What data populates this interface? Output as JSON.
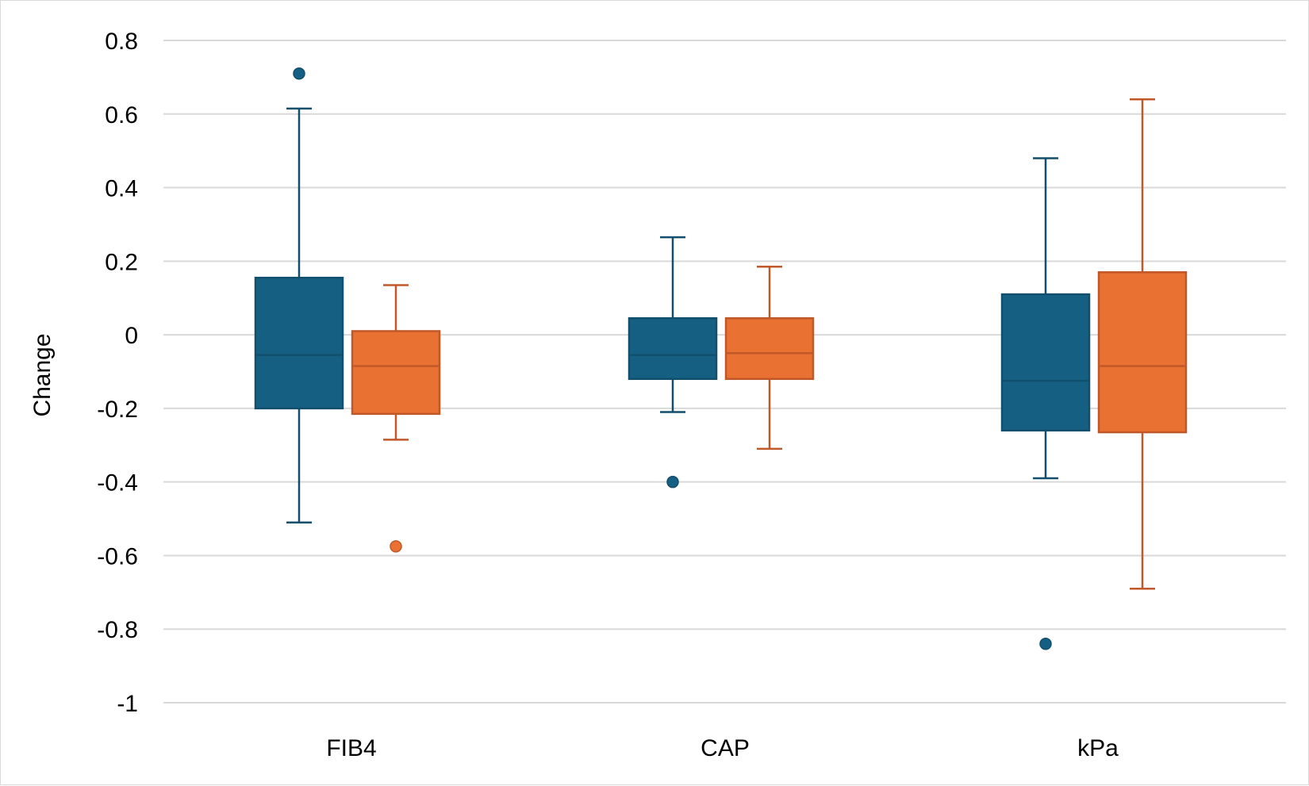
{
  "chart_data": {
    "type": "box",
    "title": "",
    "xlabel": "",
    "ylabel": "Change",
    "ylim": [
      -1,
      0.8
    ],
    "yticks": [
      0.8,
      0.6,
      0.4,
      0.2,
      0,
      -0.2,
      -0.4,
      -0.6,
      -0.8,
      -1
    ],
    "ytick_labels": [
      "0.8",
      "0.6",
      "0.4",
      "0.2",
      "0",
      "-0.2",
      "-0.4",
      "-0.6",
      "-0.8",
      "-1"
    ],
    "categories": [
      "FIB4",
      "CAP",
      "kPa"
    ],
    "grid": true,
    "legend": "none",
    "series": [
      {
        "color": "#156082",
        "boxes": [
          {
            "category": "FIB4",
            "whisker_low": -0.51,
            "q1": -0.2,
            "median": -0.055,
            "q3": 0.155,
            "whisker_high": 0.615,
            "outliers": [
              0.71
            ]
          },
          {
            "category": "CAP",
            "whisker_low": -0.21,
            "q1": -0.12,
            "median": -0.055,
            "q3": 0.045,
            "whisker_high": 0.265,
            "outliers": [
              -0.4
            ]
          },
          {
            "category": "kPa",
            "whisker_low": -0.39,
            "q1": -0.26,
            "median": -0.125,
            "q3": 0.11,
            "whisker_high": 0.48,
            "outliers": [
              -0.84
            ]
          }
        ]
      },
      {
        "color": "#E97132",
        "boxes": [
          {
            "category": "FIB4",
            "whisker_low": -0.285,
            "q1": -0.215,
            "median": -0.085,
            "q3": 0.01,
            "whisker_high": 0.135,
            "outliers": [
              -0.575
            ]
          },
          {
            "category": "CAP",
            "whisker_low": -0.31,
            "q1": -0.12,
            "median": -0.05,
            "q3": 0.045,
            "whisker_high": 0.185,
            "outliers": []
          },
          {
            "category": "kPa",
            "whisker_low": -0.69,
            "q1": -0.265,
            "median": -0.085,
            "q3": 0.17,
            "whisker_high": 0.64,
            "outliers": []
          }
        ]
      }
    ]
  },
  "colors": {
    "series_1": "#156082",
    "series_1_stroke": "#124f6d",
    "series_2": "#E97132",
    "series_2_stroke": "#c0582a",
    "gridline": "#d9d9d9",
    "axis": "#d9d9d9"
  }
}
